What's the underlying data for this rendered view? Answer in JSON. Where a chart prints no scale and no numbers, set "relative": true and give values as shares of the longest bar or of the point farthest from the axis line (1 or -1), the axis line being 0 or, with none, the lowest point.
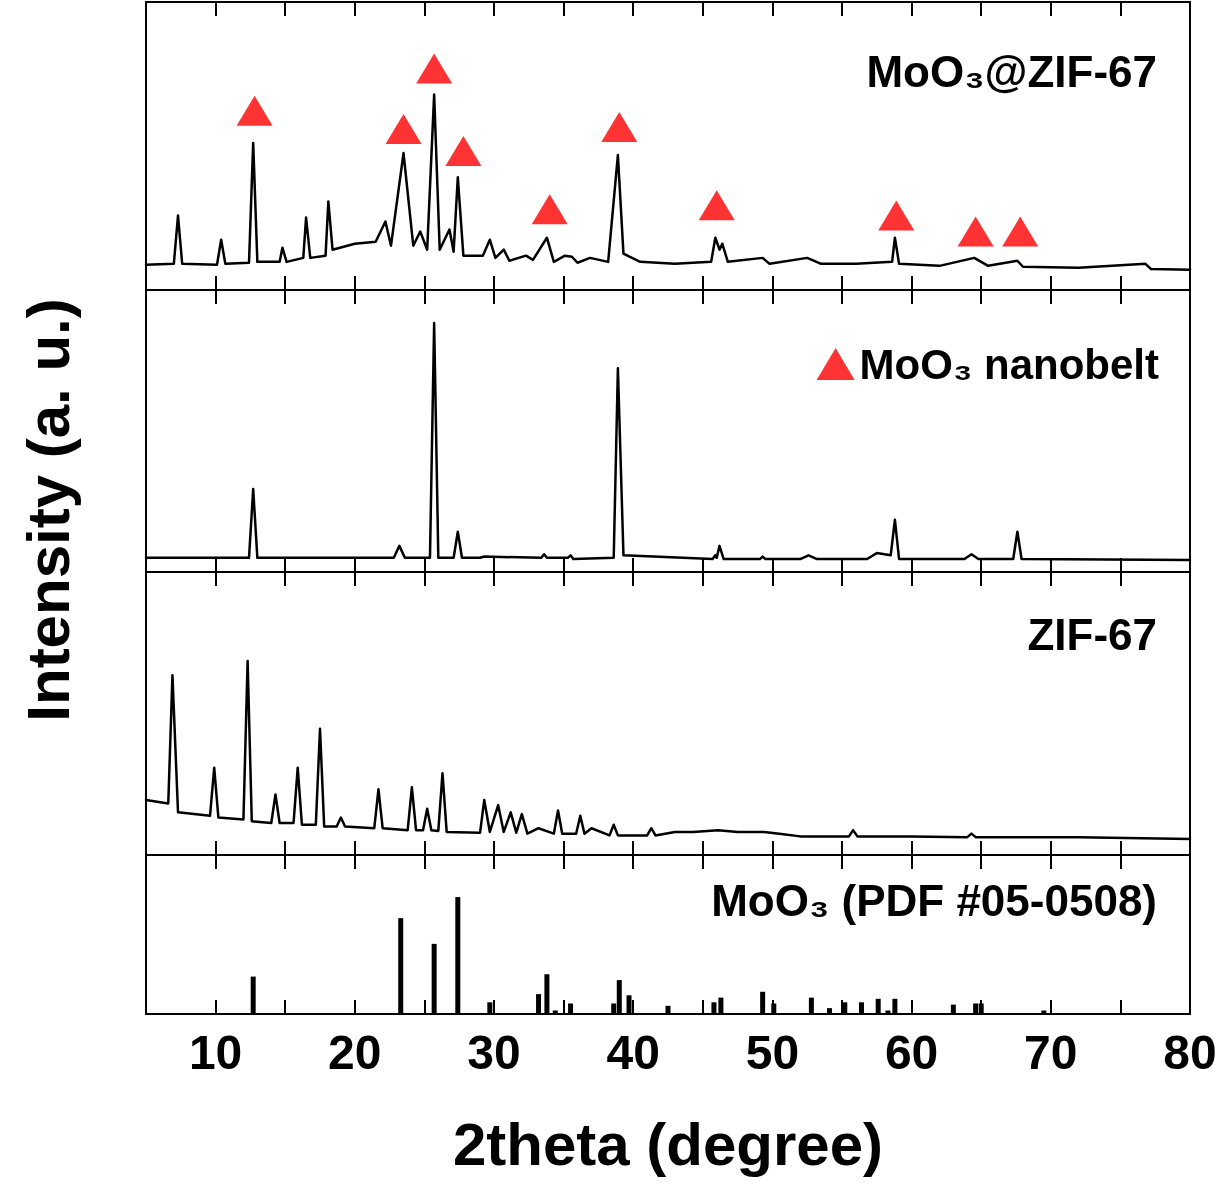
{
  "chart_data": [
    {
      "type": "line",
      "title": "MoO₃@ZIF-67",
      "relative": true,
      "xlim": [
        5,
        80
      ],
      "xticks": [
        10,
        20,
        30,
        40,
        50,
        60,
        70,
        80
      ],
      "tick_labels": false,
      "legend": "bottom right",
      "series": [
        {
          "marker": "none",
          "color": "#000000",
          "x": [
            5,
            7.0,
            7.3,
            7.6,
            10.1,
            10.4,
            10.7,
            12.4,
            12.7,
            13.0,
            14.6,
            14.8,
            15.1,
            16.3,
            16.5,
            16.8,
            17.9,
            18.1,
            18.4,
            20,
            21.5,
            22.2,
            22.6,
            23.5,
            24.2,
            24.7,
            25.2,
            25.7,
            26.1,
            26.8,
            27.1,
            27.4,
            27.8,
            29.2,
            29.7,
            30.1,
            30.7,
            31.1,
            32.3,
            32.8,
            33.8,
            34.3,
            35.1,
            35.6,
            36.0,
            36.9,
            38.2,
            38.9,
            39.3,
            40.5,
            43,
            45.6,
            45.9,
            46.2,
            46.4,
            46.8,
            49.3,
            49.8,
            52.5,
            53.5,
            56,
            58.6,
            58.8,
            59.1,
            62,
            64.5,
            65.5,
            67.6,
            68,
            72,
            76.8,
            77.2,
            80
          ],
          "values": [
            0.114,
            0.118,
            0.336,
            0.118,
            0.114,
            0.227,
            0.118,
            0.123,
            0.664,
            0.127,
            0.127,
            0.191,
            0.127,
            0.145,
            0.327,
            0.145,
            0.155,
            0.4,
            0.182,
            0.209,
            0.218,
            0.309,
            0.2,
            0.618,
            0.2,
            0.264,
            0.182,
            0.882,
            0.182,
            0.273,
            0.173,
            0.509,
            0.155,
            0.155,
            0.227,
            0.145,
            0.182,
            0.132,
            0.155,
            0.136,
            0.236,
            0.127,
            0.155,
            0.15,
            0.123,
            0.145,
            0.127,
            0.609,
            0.164,
            0.127,
            0.118,
            0.127,
            0.236,
            0.182,
            0.209,
            0.127,
            0.145,
            0.118,
            0.145,
            0.118,
            0.118,
            0.127,
            0.236,
            0.118,
            0.109,
            0.145,
            0.109,
            0.132,
            0.105,
            0.1,
            0.118,
            0.095,
            0.091
          ]
        },
        {
          "type": "scatter",
          "marker": "triangle",
          "name": "MoO₃ nanobelt",
          "color": "#ff0000",
          "x": [
            12.8,
            23.5,
            25.7,
            27.8,
            34.0,
            39.0,
            46.0,
            58.9,
            64.6,
            67.8
          ],
          "values": [
            0.809,
            0.727,
            1.0,
            0.627,
            0.364,
            0.736,
            0.382,
            0.336,
            0.264,
            0.264
          ]
        }
      ]
    },
    {
      "type": "line",
      "ylabel": "Intensity (a. u.)",
      "relative": true,
      "xlim": [
        5,
        80
      ],
      "xticks": [
        10,
        20,
        30,
        40,
        50,
        60,
        70,
        80
      ],
      "tick_labels": false,
      "series": [
        {
          "color": "#000000",
          "x": [
            5,
            12.4,
            12.7,
            13.0,
            22.8,
            23.2,
            23.6,
            25.4,
            25.7,
            26.0,
            27.1,
            27.4,
            27.7,
            29.0,
            29.3,
            33.4,
            33.6,
            33.8,
            35.3,
            35.5,
            35.7,
            38.6,
            38.9,
            39.3,
            45.7,
            45.9,
            46.0,
            46.2,
            46.5,
            49.1,
            49.3,
            49.5,
            52.0,
            52.6,
            53.2,
            56.8,
            57.5,
            58.5,
            58.8,
            59.1,
            63.8,
            64.3,
            64.8,
            67.3,
            67.6,
            67.9,
            80
          ],
          "values": [
            0.057,
            0.057,
            0.333,
            0.057,
            0.057,
            0.105,
            0.057,
            0.057,
            1.0,
            0.057,
            0.057,
            0.162,
            0.057,
            0.057,
            0.062,
            0.057,
            0.071,
            0.057,
            0.057,
            0.067,
            0.052,
            0.057,
            0.819,
            0.067,
            0.052,
            0.067,
            0.057,
            0.105,
            0.052,
            0.052,
            0.062,
            0.052,
            0.052,
            0.067,
            0.052,
            0.052,
            0.076,
            0.067,
            0.21,
            0.052,
            0.052,
            0.071,
            0.052,
            0.052,
            0.162,
            0.052,
            0.048
          ]
        }
      ]
    },
    {
      "type": "line",
      "title": "ZIF-67",
      "relative": true,
      "xlim": [
        5,
        80
      ],
      "xticks": [
        10,
        20,
        30,
        40,
        50,
        60,
        70,
        80
      ],
      "tick_labels": false,
      "series": [
        {
          "color": "#000000",
          "x": [
            5,
            6.6,
            6.9,
            7.3,
            9.6,
            9.9,
            10.2,
            12.0,
            12.3,
            12.6,
            14.0,
            14.3,
            14.6,
            15.6,
            15.9,
            16.2,
            17.2,
            17.5,
            17.8,
            18.7,
            19.0,
            19.3,
            21.4,
            21.7,
            22.0,
            23.8,
            24.1,
            24.4,
            24.9,
            25.2,
            25.5,
            26.0,
            26.3,
            26.6,
            29.0,
            29.3,
            29.7,
            30.3,
            30.7,
            31.2,
            31.6,
            32.0,
            32.4,
            33.2,
            34.3,
            34.6,
            34.9,
            35.9,
            36.2,
            36.5,
            37.0,
            38.3,
            38.6,
            38.9,
            41.0,
            41.3,
            41.6,
            43.0,
            44.3,
            46.1,
            47.5,
            49.4,
            50.5,
            52,
            55.5,
            55.8,
            56.1,
            60,
            64.0,
            64.3,
            64.6,
            72,
            80
          ],
          "values": [
            0.284,
            0.266,
            0.927,
            0.22,
            0.202,
            0.45,
            0.193,
            0.183,
            1.0,
            0.174,
            0.165,
            0.312,
            0.165,
            0.165,
            0.45,
            0.156,
            0.156,
            0.651,
            0.147,
            0.147,
            0.193,
            0.147,
            0.138,
            0.339,
            0.138,
            0.128,
            0.349,
            0.128,
            0.128,
            0.239,
            0.128,
            0.124,
            0.422,
            0.119,
            0.115,
            0.284,
            0.119,
            0.257,
            0.119,
            0.22,
            0.115,
            0.211,
            0.11,
            0.138,
            0.11,
            0.229,
            0.11,
            0.11,
            0.202,
            0.11,
            0.138,
            0.101,
            0.156,
            0.101,
            0.101,
            0.138,
            0.101,
            0.119,
            0.119,
            0.128,
            0.119,
            0.119,
            0.11,
            0.096,
            0.096,
            0.128,
            0.096,
            0.096,
            0.092,
            0.11,
            0.092,
            0.092,
            0.083
          ]
        }
      ]
    },
    {
      "type": "bar",
      "title": "MoO₃ (PDF #05-0508)",
      "xlabel": "2theta (degree)",
      "relative": true,
      "xlim": [
        5,
        80
      ],
      "xticks": [
        10,
        20,
        30,
        40,
        50,
        60,
        70,
        80
      ],
      "tick_labels": "x",
      "series": [
        {
          "color": "#000000",
          "x": [
            12.7,
            23.3,
            25.7,
            27.4,
            29.7,
            33.2,
            33.8,
            34.4,
            35.5,
            38.6,
            39.0,
            39.7,
            42.5,
            45.8,
            46.3,
            49.3,
            50.1,
            52.8,
            54.1,
            55.2,
            56.4,
            57.6,
            58.3,
            58.8,
            63.0,
            64.6,
            65.0,
            69.5
          ],
          "values": [
            0.32,
            0.82,
            0.6,
            1.0,
            0.1,
            0.17,
            0.34,
            0.03,
            0.09,
            0.09,
            0.29,
            0.16,
            0.07,
            0.1,
            0.14,
            0.19,
            0.09,
            0.14,
            0.05,
            0.1,
            0.1,
            0.13,
            0.03,
            0.13,
            0.08,
            0.09,
            0.09,
            0.03
          ]
        }
      ]
    }
  ]
}
